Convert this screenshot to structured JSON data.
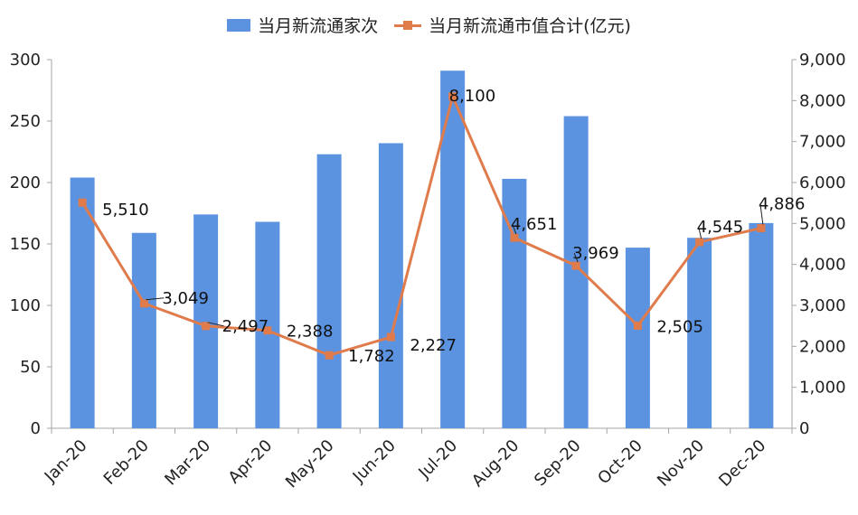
{
  "chart_data": {
    "type": "bar",
    "categories": [
      "Jan-20",
      "Feb-20",
      "Mar-20",
      "Apr-20",
      "May-20",
      "Jun-20",
      "Jul-20",
      "Aug-20",
      "Sep-20",
      "Oct-20",
      "Nov-20",
      "Dec-20"
    ],
    "series": [
      {
        "name": "当月新流通家次",
        "type": "bar",
        "axis": "left",
        "color": "#5b93e0",
        "values": [
          204,
          159,
          174,
          168,
          223,
          232,
          291,
          203,
          254,
          147,
          155,
          167
        ]
      },
      {
        "name": "当月新流通市值合计(亿元)",
        "type": "line",
        "axis": "right",
        "color": "#e07b4c",
        "values": [
          5510,
          3049,
          2497,
          2388,
          1782,
          2227,
          8100,
          4651,
          3969,
          2505,
          4545,
          4886
        ],
        "labels": [
          "5,510",
          "3,049",
          "2,497",
          "2,388",
          "1,782",
          "2,227",
          "8,100",
          "4,651",
          "3,969",
          "2,505",
          "4,545",
          "4,886"
        ]
      }
    ],
    "y_left": {
      "ylim": [
        0,
        300
      ],
      "ticks": [
        "0",
        "50",
        "100",
        "150",
        "200",
        "250",
        "300"
      ]
    },
    "y_right": {
      "ylim": [
        0,
        9000
      ],
      "ticks": [
        "0",
        "1,000",
        "2,000",
        "3,000",
        "4,000",
        "5,000",
        "6,000",
        "7,000",
        "8,000",
        "9,000"
      ]
    },
    "grid": false,
    "legend": "top-center"
  }
}
